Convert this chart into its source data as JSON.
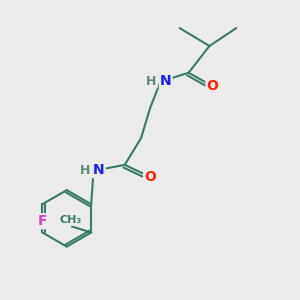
{
  "background_color": "#ebebeb",
  "bond_color": "#3a7a6a",
  "bond_width": 1.5,
  "atom_colors": {
    "N": "#1a1aff",
    "O": "#ff2200",
    "F": "#cc44cc",
    "H": "#5a8a7a",
    "C": "#3a7a6a"
  },
  "font_size_atoms": 10,
  "font_size_small": 9,
  "figsize": [
    3.0,
    3.0
  ],
  "dpi": 100
}
